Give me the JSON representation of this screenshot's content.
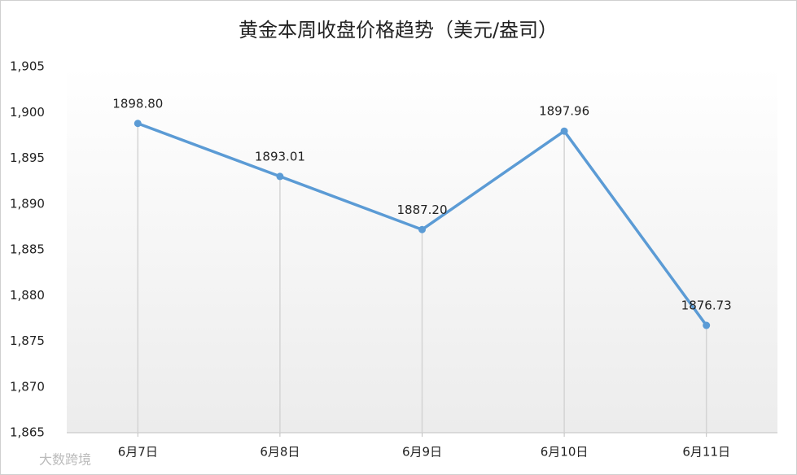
{
  "chart_data": {
    "type": "line",
    "title": "黄金本周收盘价格趋势（美元/盎司）",
    "categories": [
      "6月7日",
      "6月8日",
      "6月9日",
      "6月10日",
      "6月11日"
    ],
    "series": [
      {
        "color": "#5b9bd5",
        "values": [
          1898.8,
          1893.01,
          1887.2,
          1897.96,
          1876.73
        ],
        "value_labels": [
          "1898.80",
          "1893.01",
          "1887.20",
          "1897.96",
          "1876.73"
        ]
      }
    ],
    "ylim": [
      1865,
      1905
    ],
    "yticks": [
      {
        "value": 1865,
        "label": "1,865"
      },
      {
        "value": 1870,
        "label": "1,870"
      },
      {
        "value": 1875,
        "label": "1,875"
      },
      {
        "value": 1880,
        "label": "1,880"
      },
      {
        "value": 1885,
        "label": "1,885"
      },
      {
        "value": 1890,
        "label": "1,890"
      },
      {
        "value": 1895,
        "label": "1,895"
      },
      {
        "value": 1900,
        "label": "1,900"
      },
      {
        "value": 1905,
        "label": "1,905"
      }
    ],
    "drop_lines": true,
    "watermark": "大数跨境"
  }
}
